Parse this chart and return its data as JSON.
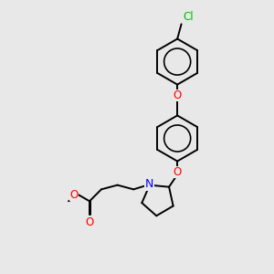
{
  "bg_color": "#e8e8e8",
  "bond_color": "#000000",
  "oxygen_color": "#ff0000",
  "nitrogen_color": "#0000ff",
  "chlorine_color": "#00bb00",
  "lw": 1.4,
  "fs": 8.5,
  "dbg": 0.045,
  "ring_r": 1.0,
  "figsize": [
    3.0,
    3.0
  ],
  "dpi": 100,
  "xlim": [
    0,
    10
  ],
  "ylim": [
    0,
    10
  ]
}
